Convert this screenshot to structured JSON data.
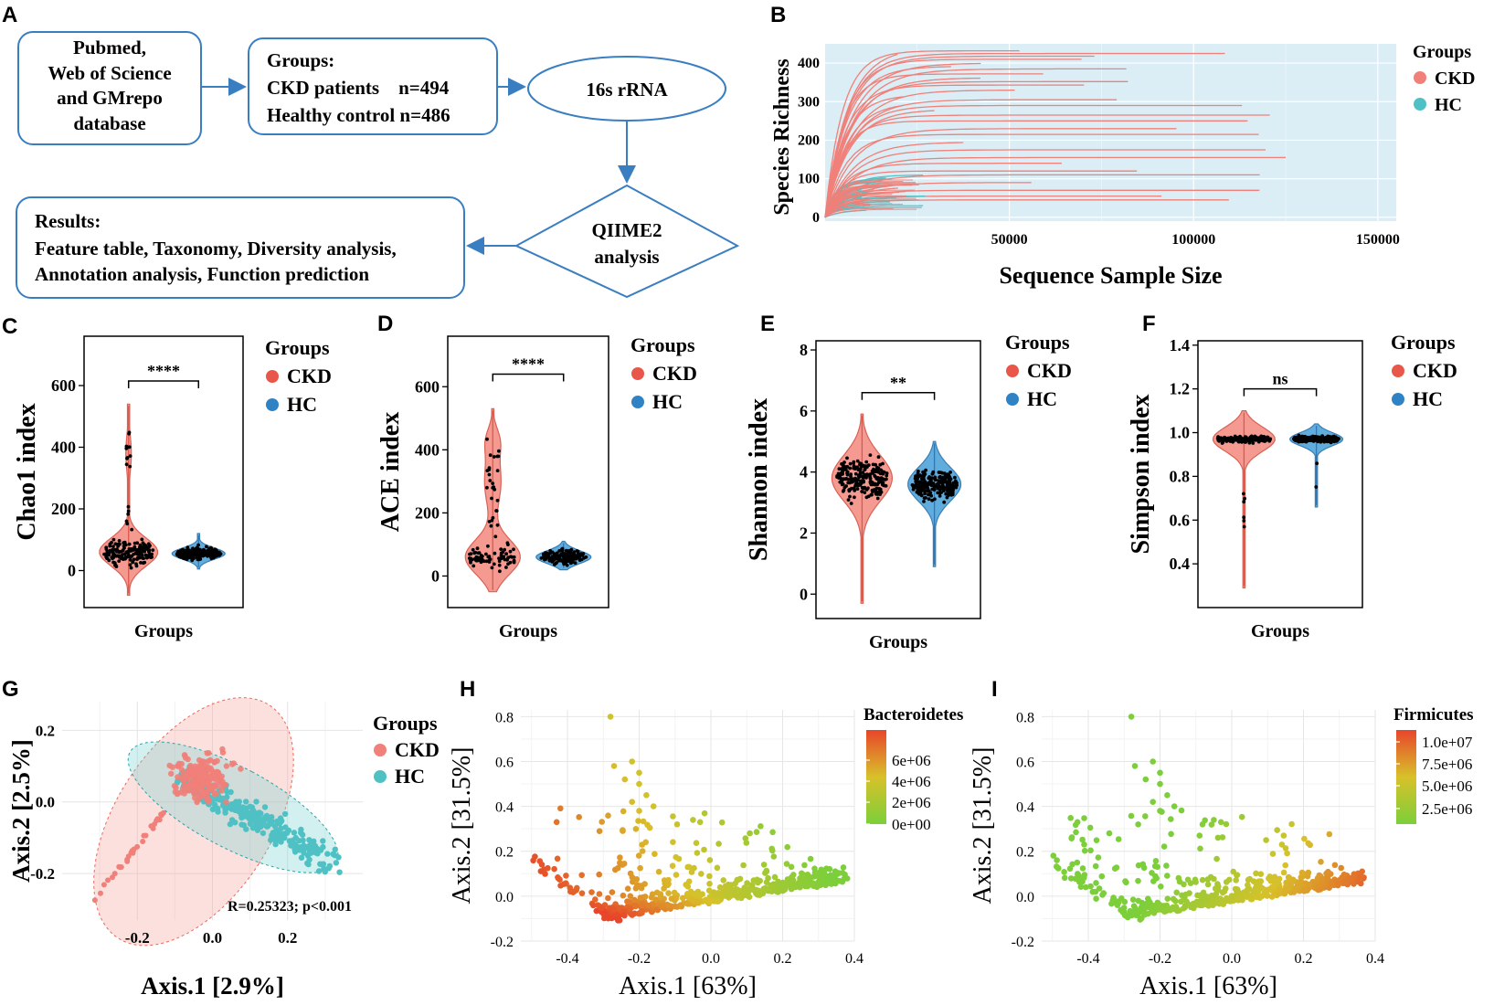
{
  "panels": {
    "a": "A",
    "b": "B",
    "c": "C",
    "d": "D",
    "e": "E",
    "f": "F",
    "g": "G",
    "h": "H",
    "i": "I"
  },
  "flow": {
    "db_line1": "Pubmed,",
    "db_line2": "Web of Science",
    "db_line3": "and GMrepo",
    "db_line4": "database",
    "groups_title": "Groups:",
    "groups_ckd": "CKD patients    n=494",
    "groups_hc": "Healthy control n=486",
    "rrna": "16s rRNA",
    "qiime_line1": "QIIME2",
    "qiime_line2": "analysis",
    "results_title": "Results:",
    "results_line1": "Feature table, Taxonomy, Diversity analysis,",
    "results_line2": "Annotation analysis, Function prediction"
  },
  "colors": {
    "ckd": "#f08079",
    "hc": "#4fc1c4",
    "ckd_violin": "#f4958c",
    "hc_violin": "#58a9dc",
    "ckd_dot": "#e8574a",
    "hc_dot": "#2f82c4",
    "panel_bg": "#dbedf5"
  },
  "chart_data": [
    {
      "id": "B",
      "type": "line",
      "title": "",
      "xlabel": "Sequence Sample Size",
      "ylabel": "Species Richness",
      "xlim": [
        0,
        155000
      ],
      "ylim": [
        -10,
        450
      ],
      "xticks": [
        "50000",
        "100000",
        "150000"
      ],
      "yticks": [
        "0",
        "100",
        "200",
        "300",
        "400"
      ],
      "legend": {
        "title": "Groups",
        "entries": [
          "CKD",
          "HC"
        ]
      },
      "series": [
        {
          "name": "CKD",
          "plateaus": [
            440,
            432,
            425,
            418,
            410,
            400,
            392,
            385,
            372,
            362,
            352,
            343,
            330,
            318,
            305,
            298,
            290,
            280,
            265,
            250,
            230,
            215,
            195,
            175,
            155,
            140,
            120,
            110,
            90,
            80,
            70,
            55,
            45
          ]
        },
        {
          "name": "HC",
          "plateaus": [
            110,
            105,
            100,
            95,
            90,
            85,
            80,
            75,
            70,
            65,
            60,
            55,
            50,
            45,
            40,
            35,
            30,
            25,
            20
          ]
        }
      ]
    },
    {
      "id": "C",
      "type": "violin",
      "xlabel": "Groups",
      "ylabel": "Chao1 index",
      "ylim": [
        -120,
        760
      ],
      "yticks": [
        "0",
        "200",
        "400",
        "600"
      ],
      "groups": [
        "CKD",
        "HC"
      ],
      "medians": [
        60,
        55
      ],
      "ranges": [
        [
          -80,
          540
        ],
        [
          5,
          120
        ]
      ],
      "significance": "****",
      "legend": {
        "title": "Groups",
        "entries": [
          "CKD",
          "HC"
        ]
      }
    },
    {
      "id": "D",
      "type": "violin",
      "xlabel": "Groups",
      "ylabel": "ACE index",
      "ylim": [
        -100,
        760
      ],
      "yticks": [
        "0",
        "200",
        "400",
        "600"
      ],
      "groups": [
        "CKD",
        "HC"
      ],
      "medians": [
        60,
        60
      ],
      "ranges": [
        [
          -50,
          530
        ],
        [
          20,
          110
        ]
      ],
      "significance": "****",
      "legend": {
        "title": "Groups",
        "entries": [
          "CKD",
          "HC"
        ]
      }
    },
    {
      "id": "E",
      "type": "violin",
      "xlabel": "Groups",
      "ylabel": "Shannon index",
      "ylim": [
        -0.8,
        8.3
      ],
      "yticks": [
        "0",
        "2",
        "4",
        "6",
        "8"
      ],
      "groups": [
        "CKD",
        "HC"
      ],
      "medians": [
        3.8,
        3.6
      ],
      "ranges": [
        [
          -0.3,
          5.9
        ],
        [
          0.9,
          5.0
        ]
      ],
      "significance": "**",
      "legend": {
        "title": "Groups",
        "entries": [
          "CKD",
          "HC"
        ]
      }
    },
    {
      "id": "F",
      "type": "violin",
      "xlabel": "Groups",
      "ylabel": "Simpson index",
      "ylim": [
        0.2,
        1.42
      ],
      "yticks": [
        "0.4",
        "0.6",
        "0.8",
        "1.0",
        "1.2",
        "1.4"
      ],
      "groups": [
        "CKD",
        "HC"
      ],
      "medians": [
        0.97,
        0.97
      ],
      "ranges": [
        [
          0.29,
          1.1
        ],
        [
          0.66,
          1.04
        ]
      ],
      "significance": "ns",
      "legend": {
        "title": "Groups",
        "entries": [
          "CKD",
          "HC"
        ]
      }
    },
    {
      "id": "G",
      "type": "scatter",
      "xlabel": "Axis.1 [2.9%]",
      "ylabel": "Axis.2 [2.5%]",
      "xlim": [
        -0.4,
        0.4
      ],
      "ylim": [
        -0.33,
        0.28
      ],
      "xticks": [
        "-0.2",
        "0.0",
        "0.2"
      ],
      "yticks": [
        "-0.2",
        "0.0",
        "0.2"
      ],
      "annotation": "R=0.25323; p<0.001",
      "legend": {
        "title": "Groups",
        "entries": [
          "CKD",
          "HC"
        ]
      }
    },
    {
      "id": "H",
      "type": "scatter",
      "xlabel": "Axis.1 [63%]",
      "ylabel": "Axis.2 [31.5%]",
      "xlim": [
        -0.53,
        0.4
      ],
      "ylim": [
        -0.2,
        0.83
      ],
      "xticks": [
        "-0.4",
        "-0.2",
        "0.0",
        "0.2",
        "0.4"
      ],
      "yticks": [
        "-0.2",
        "0.0",
        "0.2",
        "0.4",
        "0.6",
        "0.8"
      ],
      "colorbar": {
        "title": "Bacteroidetes",
        "labels": [
          "6e+06",
          "4e+06",
          "2e+06",
          "0e+00"
        ]
      }
    },
    {
      "id": "I",
      "type": "scatter",
      "xlabel": "Axis.1 [63%]",
      "ylabel": "Axis.2 [31.5%]",
      "xlim": [
        -0.53,
        0.4
      ],
      "ylim": [
        -0.2,
        0.83
      ],
      "xticks": [
        "-0.4",
        "-0.2",
        "0.0",
        "0.2",
        "0.4"
      ],
      "yticks": [
        "-0.2",
        "0.0",
        "0.2",
        "0.4",
        "0.6",
        "0.8"
      ],
      "colorbar": {
        "title": "Firmicutes",
        "labels": [
          "1.0e+07",
          "7.5e+06",
          "5.0e+06",
          "2.5e+06"
        ]
      }
    }
  ]
}
